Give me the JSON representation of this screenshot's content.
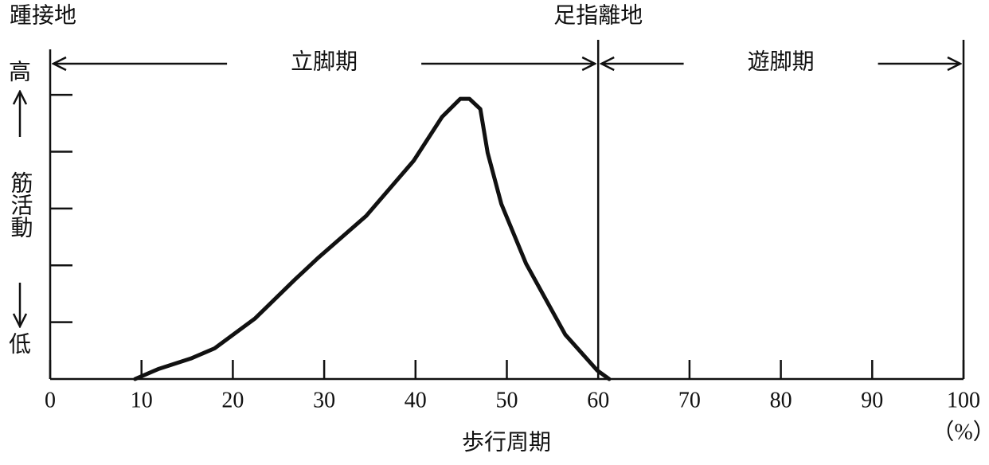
{
  "chart_data": {
    "type": "line",
    "x_label": "歩行周期",
    "x_unit": "（%）",
    "y_label": "筋活動",
    "y_high": "高",
    "y_low": "低",
    "events": [
      {
        "label": "踵接地",
        "x": 0
      },
      {
        "label": "足指離地",
        "x": 60
      }
    ],
    "phases": [
      {
        "label": "立脚期",
        "start": 0,
        "end": 60
      },
      {
        "label": "遊脚期",
        "start": 60,
        "end": 100
      }
    ],
    "xlim": [
      0,
      100
    ],
    "xticks": [
      0,
      10,
      20,
      30,
      40,
      50,
      60,
      70,
      80,
      90,
      100
    ],
    "ylim": [
      0,
      5.8
    ],
    "yticks": [
      1,
      2,
      3,
      4,
      5
    ],
    "series": [
      {
        "color": "#111111",
        "x": [
          9.3,
          11.9,
          15.4,
          18.0,
          22.4,
          26.8,
          29.4,
          34.6,
          39.8,
          42.9,
          44.9,
          45.9,
          47.1,
          47.9,
          49.4,
          52.1,
          56.4,
          59.9,
          61.2
        ],
        "values": [
          0,
          0.18,
          0.36,
          0.54,
          1.06,
          1.75,
          2.14,
          2.87,
          3.84,
          4.61,
          4.93,
          4.93,
          4.75,
          3.98,
          3.08,
          2.03,
          0.78,
          0.15,
          0
        ]
      }
    ]
  }
}
